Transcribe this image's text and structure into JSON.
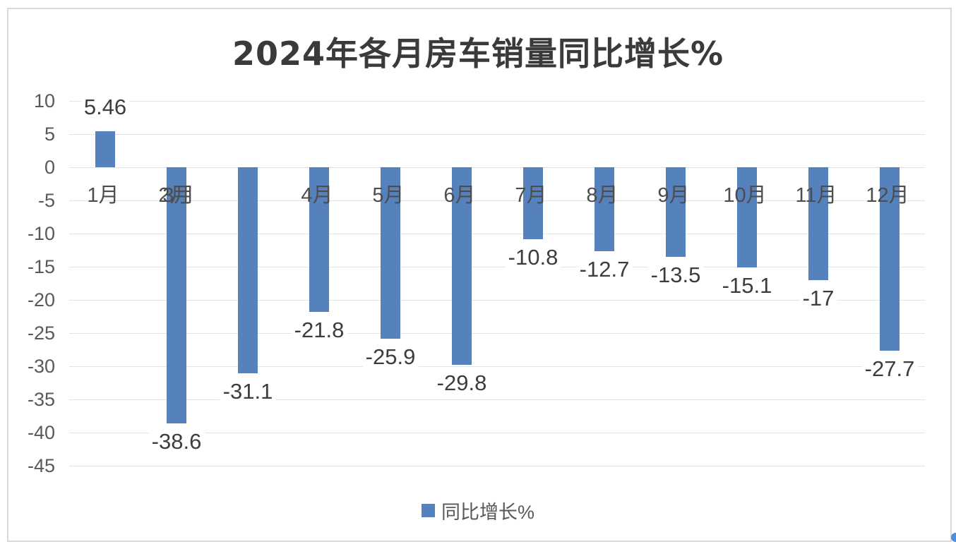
{
  "page": {
    "background_color": "#ffffff",
    "frame_border_color": "#d9d9d9"
  },
  "title": "2024年各月房车销量同比增长%",
  "legend": {
    "label": "同比增长%",
    "swatch_color": "#5581BD"
  },
  "decoration": {
    "corner_dot_color": "#4a8fe0"
  },
  "chart_data": {
    "type": "bar",
    "title": "2024年各月房车销量同比增长%",
    "categories": [
      "1月",
      "2月",
      "3月",
      "4月",
      "5月",
      "6月",
      "7月",
      "8月",
      "9月",
      "10月",
      "11月",
      "12月"
    ],
    "series": [
      {
        "name": "同比增长%",
        "values": [
          5.46,
          -38.6,
          -31.1,
          -21.8,
          -25.9,
          -29.8,
          -10.8,
          -12.7,
          -13.5,
          -15.1,
          -17,
          -27.7
        ]
      }
    ],
    "data_labels": [
      "5.46",
      "-38.6",
      "-31.1",
      "-21.8",
      "-25.9",
      "-29.8",
      "-10.8",
      "-12.7",
      "-13.5",
      "-15.1",
      "-17",
      "-27.7"
    ],
    "y_ticks": [
      10,
      5,
      0,
      -5,
      -10,
      -15,
      -20,
      -25,
      -30,
      -35,
      -40,
      -45
    ],
    "ylim": [
      -45,
      10
    ],
    "xlabel": "",
    "ylabel": "",
    "grid": true,
    "legend_position": "bottom",
    "bar_color": "#5581BD",
    "gridline_color": "#e3e3e3",
    "axis_text_color": "#595959",
    "data_label_text_color": "#3d3d3d",
    "x_axis_labels": [
      {
        "text": "1月",
        "slot": 0,
        "dx": -3
      },
      {
        "text": "2月",
        "slot": 1,
        "dx": -3
      },
      {
        "text": "3月",
        "slot": 1,
        "dx": 3
      },
      {
        "text": "4月",
        "slot": 3,
        "dx": -3
      },
      {
        "text": "5月",
        "slot": 4,
        "dx": -3
      },
      {
        "text": "6月",
        "slot": 5,
        "dx": -3
      },
      {
        "text": "7月",
        "slot": 6,
        "dx": -3
      },
      {
        "text": "8月",
        "slot": 7,
        "dx": -3
      },
      {
        "text": "9月",
        "slot": 8,
        "dx": -3
      },
      {
        "text": "10月",
        "slot": 9,
        "dx": -3
      },
      {
        "text": "11月",
        "slot": 10,
        "dx": -3
      },
      {
        "text": "12月",
        "slot": 11,
        "dx": -3
      }
    ]
  }
}
